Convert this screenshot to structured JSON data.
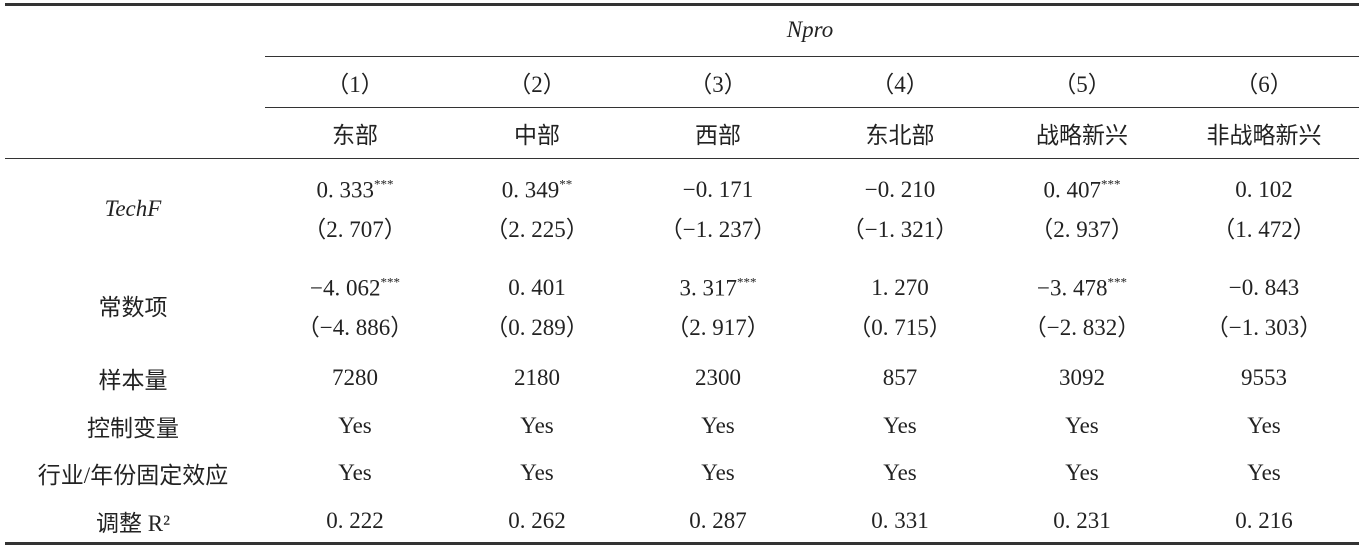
{
  "header": {
    "dependent": "Npro",
    "columns": [
      "（1）",
      "（2）",
      "（3）",
      "（4）",
      "（5）",
      "（6）"
    ],
    "groups": [
      "东部",
      "中部",
      "西部",
      "东北部",
      "战略新兴",
      "非战略新兴"
    ]
  },
  "coef_rows": [
    {
      "label": "TechF",
      "cells": [
        {
          "coef": "0. 333",
          "stars": "***",
          "t": "（2. 707）"
        },
        {
          "coef": "0. 349",
          "stars": "**",
          "t": "（2. 225）"
        },
        {
          "coef": "−0. 171",
          "t": "（−1. 237）"
        },
        {
          "coef": "−0. 210",
          "t": "（−1. 321）"
        },
        {
          "coef": "0. 407",
          "stars": "***",
          "t": "（2. 937）"
        },
        {
          "coef": "0. 102",
          "t": "（1. 472）"
        }
      ]
    },
    {
      "label": "常数项",
      "cells": [
        {
          "coef": "−4. 062",
          "stars": "***",
          "t": "（−4. 886）"
        },
        {
          "coef": "0. 401",
          "t": "（0. 289）"
        },
        {
          "coef": "3. 317",
          "stars": "***",
          "t": "（2. 917）"
        },
        {
          "coef": "1. 270",
          "t": "（0. 715）"
        },
        {
          "coef": "−3. 478",
          "stars": "***",
          "t": "（−2. 832）"
        },
        {
          "coef": "−0. 843",
          "t": "（−1. 303）"
        }
      ]
    }
  ],
  "stat_rows": [
    {
      "label": "样本量",
      "values": [
        "7280",
        "2180",
        "2300",
        "857",
        "3092",
        "9553"
      ]
    },
    {
      "label": "控制变量",
      "values": [
        "Yes",
        "Yes",
        "Yes",
        "Yes",
        "Yes",
        "Yes"
      ]
    },
    {
      "label": "行业/年份固定效应",
      "values": [
        "Yes",
        "Yes",
        "Yes",
        "Yes",
        "Yes",
        "Yes"
      ]
    },
    {
      "label": "调整 R²",
      "values": [
        "0. 222",
        "0. 262",
        "0. 287",
        "0. 331",
        "0. 231",
        "0. 216"
      ]
    }
  ]
}
